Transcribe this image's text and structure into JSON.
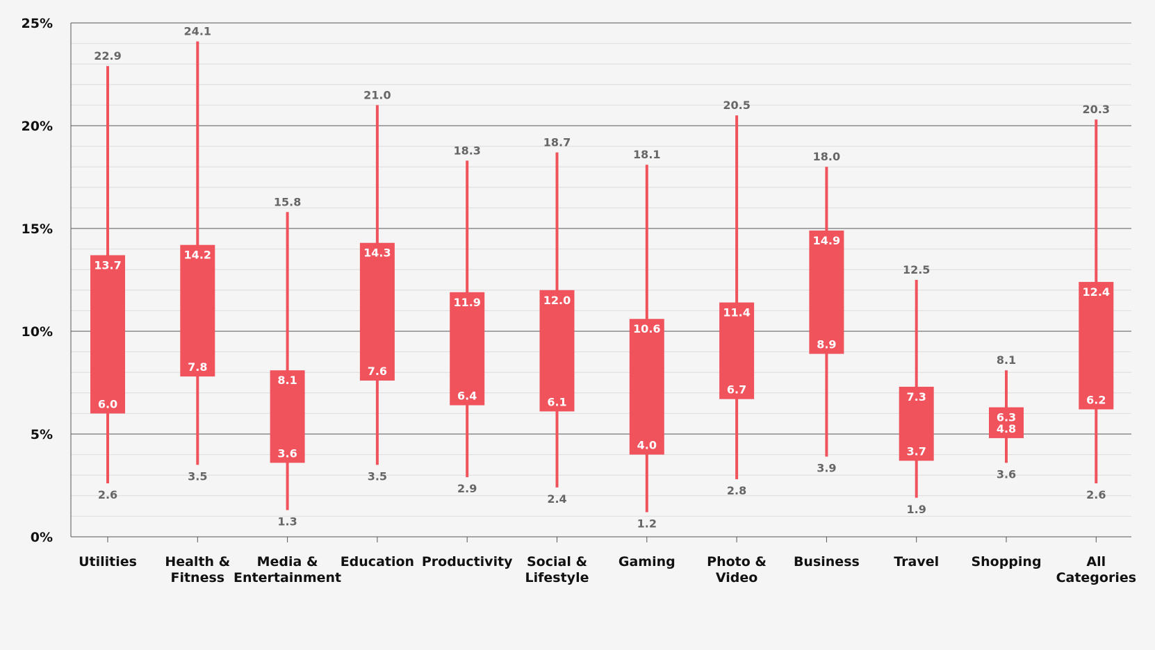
{
  "chart_data": {
    "type": "boxplot",
    "categories": [
      [
        "Utilities"
      ],
      [
        "Health &",
        "Fitness"
      ],
      [
        "Media &",
        "Entertainment"
      ],
      [
        "Education"
      ],
      [
        "Productivity"
      ],
      [
        "Social &",
        "Lifestyle"
      ],
      [
        "Gaming"
      ],
      [
        "Photo &",
        "Video"
      ],
      [
        "Business"
      ],
      [
        "Travel"
      ],
      [
        "Shopping"
      ],
      [
        "All",
        "Categories"
      ]
    ],
    "min": [
      2.6,
      3.5,
      1.3,
      3.5,
      2.9,
      2.4,
      1.2,
      2.8,
      3.9,
      1.9,
      3.6,
      2.6
    ],
    "q1": [
      6.0,
      7.8,
      3.6,
      7.6,
      6.4,
      6.1,
      4.0,
      6.7,
      8.9,
      3.7,
      4.8,
      6.2
    ],
    "q3": [
      13.7,
      14.2,
      8.1,
      14.3,
      11.9,
      12.0,
      10.6,
      11.4,
      14.9,
      7.3,
      6.3,
      12.4
    ],
    "max": [
      22.9,
      24.1,
      15.8,
      21.0,
      18.3,
      18.7,
      18.1,
      20.5,
      18.0,
      12.5,
      8.1,
      20.3
    ],
    "labels": {
      "min": [
        "2.6",
        "3.5",
        "1.3",
        "3.5",
        "2.9",
        "2.4",
        "1.2",
        "2.8",
        "3.9",
        "1.9",
        "3.6",
        "2.6"
      ],
      "q1": [
        "6.0",
        "7.8",
        "3.6",
        "7.6",
        "6.4",
        "6.1",
        "4.0",
        "6.7",
        "8.9",
        "3.7",
        "4.8",
        "6.2"
      ],
      "q3": [
        "13.7",
        "14.2",
        "8.1",
        "14.3",
        "11.9",
        "12.0",
        "10.6",
        "11.4",
        "14.9",
        "7.3",
        "6.3",
        "12.4"
      ],
      "max": [
        "22.9",
        "24.1",
        "15.8",
        "21.0",
        "18.3",
        "18.7",
        "18.1",
        "20.5",
        "18.0",
        "12.5",
        "8.1",
        "20.3"
      ]
    },
    "y_ticks": [
      0,
      5,
      10,
      15,
      20,
      25
    ],
    "y_tick_labels": [
      "0%",
      "5%",
      "10%",
      "15%",
      "20%",
      "25%"
    ],
    "ylim": [
      0,
      25
    ],
    "minor_grid_step": 1,
    "grid": true,
    "legend": "none",
    "colors": {
      "box": "#f1535d",
      "major_grid": "#555555",
      "minor_grid": "#dcdcdc",
      "background": "#f5f5f5",
      "outer_label": "#666666",
      "inner_label": "#ffffff"
    }
  }
}
